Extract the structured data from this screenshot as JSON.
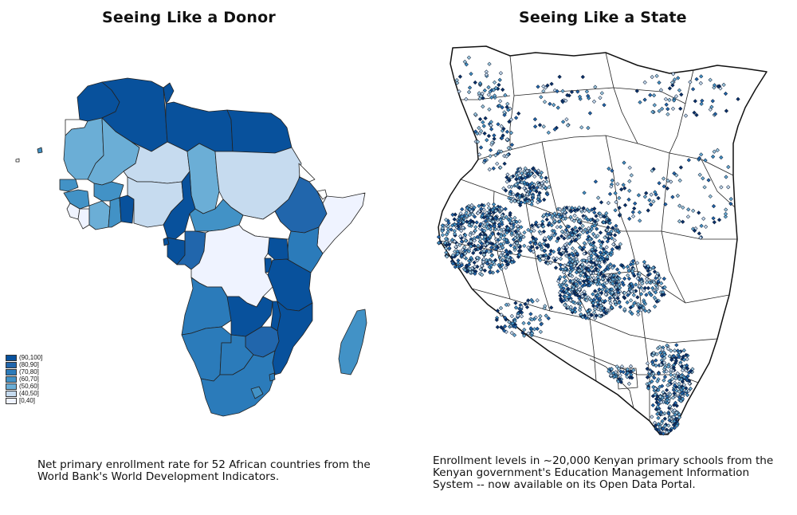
{
  "left_panel": {
    "title": "Seeing Like a Donor",
    "caption": "Net primary enrollment rate for 52 African countries from the World Bank's World Development Indicators.",
    "legend": [
      {
        "label": "(90,100]",
        "color": "#08519c"
      },
      {
        "label": "(80,90]",
        "color": "#2166ac"
      },
      {
        "label": "(70,80]",
        "color": "#2b7bba"
      },
      {
        "label": "(60,70]",
        "color": "#4292c6"
      },
      {
        "label": "(50,60]",
        "color": "#6baed6"
      },
      {
        "label": "(40,50]",
        "color": "#c6dbef"
      },
      {
        "label": "[0,40]",
        "color": "#eff3ff"
      }
    ]
  },
  "right_panel": {
    "title": "Seeing Like a State",
    "caption": "Enrollment levels in ~20,000 Kenyan primary schools from the Kenyan government's Education Management Information System -- now available on its Open Data Portal."
  }
}
